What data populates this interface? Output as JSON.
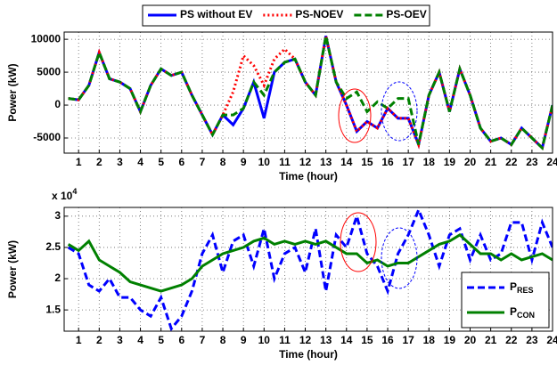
{
  "chart_data": [
    {
      "type": "line",
      "xlabel": "Time (hour)",
      "ylabel": "Power (kW)",
      "legend": "top",
      "grid": true,
      "x": [
        0.5,
        1,
        1.5,
        2,
        2.5,
        3,
        3.5,
        4,
        4.5,
        5,
        5.5,
        6,
        6.5,
        7,
        7.5,
        8,
        8.5,
        9,
        9.5,
        10,
        10.5,
        11,
        11.5,
        12,
        12.5,
        13,
        13.5,
        14,
        14.5,
        15,
        15.5,
        16,
        16.5,
        17,
        17.5,
        18,
        18.5,
        19,
        19.5,
        20,
        20.5,
        21,
        21.5,
        22,
        22.5,
        23,
        23.5,
        24
      ],
      "xlim": [
        0.3,
        24
      ],
      "xticks": [
        1,
        2,
        3,
        4,
        5,
        6,
        7,
        8,
        9,
        10,
        11,
        12,
        13,
        14,
        15,
        16,
        17,
        18,
        19,
        20,
        21,
        22,
        23,
        24
      ],
      "ylim": [
        -7300,
        11100
      ],
      "yticks": [
        -5000,
        0,
        5000,
        10000
      ],
      "series": [
        {
          "name": "PS without EV",
          "color": "#0000ff",
          "dash": "solid",
          "values": [
            1000,
            800,
            3000,
            8000,
            4000,
            3500,
            2500,
            -1000,
            3000,
            5500,
            4500,
            5000,
            1500,
            -1500,
            -4500,
            -1500,
            -3000,
            -500,
            3500,
            -2000,
            5000,
            6500,
            7000,
            3500,
            1500,
            10500,
            3500,
            0,
            -4000,
            -2500,
            -3500,
            -500,
            -2000,
            -2000,
            -6000,
            1500,
            5000,
            -1000,
            5500,
            1500,
            -3500,
            -5500,
            -5000,
            -6000,
            -3500,
            -5000,
            -6500,
            0
          ]
        },
        {
          "name": "PS-NOEV",
          "color": "#ff0000",
          "dash": "dotted",
          "values": [
            1000,
            800,
            3000,
            8000,
            4000,
            3500,
            2500,
            -1000,
            3000,
            5500,
            4500,
            5000,
            1500,
            -1500,
            -4500,
            -1500,
            2000,
            7500,
            6000,
            3000,
            7000,
            8500,
            7000,
            3500,
            1500,
            10500,
            3500,
            0,
            -4000,
            -2500,
            -3500,
            -500,
            -2000,
            -2000,
            -6000,
            1500,
            5000,
            -1000,
            5500,
            1500,
            -3500,
            -5500,
            -5000,
            -6000,
            -3500,
            -5000,
            -6500,
            0
          ]
        },
        {
          "name": "PS-OEV",
          "color": "#008000",
          "dash": "dashed",
          "values": [
            1000,
            800,
            3000,
            8000,
            4000,
            3500,
            2500,
            -1000,
            3000,
            5500,
            4500,
            5000,
            1500,
            -1500,
            -4500,
            -1500,
            -1500,
            -500,
            3500,
            1500,
            5000,
            6500,
            7000,
            3500,
            1500,
            10500,
            3500,
            1000,
            2000,
            -1000,
            500,
            -500,
            1000,
            1000,
            -6000,
            1500,
            5000,
            -1000,
            5500,
            1500,
            -3500,
            -5500,
            -5000,
            -6000,
            -3500,
            -5000,
            -6500,
            0
          ]
        }
      ]
    },
    {
      "type": "line",
      "xlabel": "Time (hour)",
      "ylabel": "Power (kW)",
      "legend": "lower right",
      "grid": true,
      "multiplier": "x 10",
      "multiplier_exp": "4",
      "x": [
        0.5,
        1,
        1.5,
        2,
        2.5,
        3,
        3.5,
        4,
        4.5,
        5,
        5.5,
        6,
        6.5,
        7,
        7.5,
        8,
        8.5,
        9,
        9.5,
        10,
        10.5,
        11,
        11.5,
        12,
        12.5,
        13,
        13.5,
        14,
        14.5,
        15,
        15.5,
        16,
        16.5,
        17,
        17.5,
        18,
        18.5,
        19,
        19.5,
        20,
        20.5,
        21,
        21.5,
        22,
        22.5,
        23,
        23.5,
        24
      ],
      "xlim": [
        0.3,
        24
      ],
      "xticks": [
        1,
        2,
        3,
        4,
        5,
        6,
        7,
        8,
        9,
        10,
        11,
        12,
        13,
        14,
        15,
        16,
        17,
        18,
        19,
        20,
        21,
        22,
        23,
        24
      ],
      "ylim": [
        11600,
        31400
      ],
      "yticks": [
        {
          "value": 15000,
          "label": "1.5"
        },
        {
          "value": 20000,
          "label": "2"
        },
        {
          "value": 25000,
          "label": "2.5"
        },
        {
          "value": 30000,
          "label": "3"
        }
      ],
      "series": [
        {
          "name": "P",
          "subscript": "RES",
          "color": "#0000ff",
          "dash": "dashed",
          "values": [
            25000,
            24000,
            19000,
            18000,
            20000,
            17000,
            17000,
            15000,
            14000,
            17000,
            12000,
            14000,
            18000,
            24000,
            27000,
            21000,
            26000,
            27000,
            22000,
            28000,
            20000,
            24000,
            25000,
            21000,
            28000,
            18000,
            27000,
            25000,
            30000,
            24000,
            22000,
            18000,
            24000,
            27000,
            31000,
            27000,
            22000,
            27000,
            28000,
            23000,
            27000,
            23000,
            24000,
            29000,
            29000,
            23000,
            29000,
            25000
          ]
        },
        {
          "name": "P",
          "subscript": "CON",
          "color": "#008000",
          "dash": "solid",
          "values": [
            25500,
            24500,
            26000,
            23000,
            22000,
            21000,
            19500,
            19000,
            18500,
            18000,
            18500,
            19000,
            20000,
            22000,
            23000,
            24000,
            24500,
            25000,
            26000,
            26500,
            25500,
            26000,
            25500,
            26000,
            25500,
            26000,
            25000,
            24000,
            24000,
            22500,
            23000,
            22000,
            22500,
            22500,
            23500,
            24500,
            25500,
            26000,
            27000,
            25500,
            24000,
            24000,
            23000,
            24000,
            23000,
            23500,
            24000,
            23000
          ]
        }
      ]
    }
  ]
}
